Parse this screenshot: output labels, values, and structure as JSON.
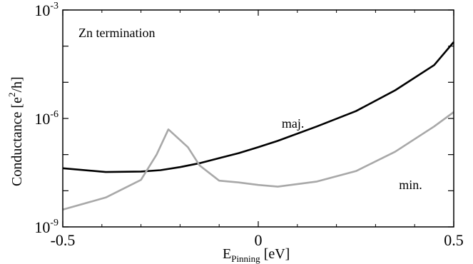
{
  "chart_data": {
    "type": "line",
    "annotation": "Zn termination",
    "xlabel": {
      "main": "E",
      "sub": "Pinning",
      "unit": " [eV]"
    },
    "ylabel": {
      "main": "Conductance [e",
      "sup": "2",
      "tail": "/h]"
    },
    "xlim": [
      -0.5,
      0.5
    ],
    "ylim_log10": [
      -9,
      -3
    ],
    "yscale": "log",
    "grid": false,
    "x_ticks": [
      {
        "value": -0.5,
        "label": "-0.5"
      },
      {
        "value": 0,
        "label": "0"
      },
      {
        "value": 0.5,
        "label": "0.5"
      }
    ],
    "y_ticks": [
      {
        "exp": -3,
        "base": "10",
        "sup": "-3"
      },
      {
        "exp": -6,
        "base": "10",
        "sup": "-6"
      },
      {
        "exp": -9,
        "base": "10",
        "sup": "-9"
      }
    ],
    "series": [
      {
        "name": "maj.",
        "color": "#000000",
        "x": [
          -0.5,
          -0.39,
          -0.3,
          -0.25,
          -0.2,
          -0.15,
          -0.1,
          -0.05,
          0.0,
          0.05,
          0.15,
          0.25,
          0.35,
          0.45,
          0.5
        ],
        "y": [
          4.2e-08,
          3.3e-08,
          3.4e-08,
          3.7e-08,
          4.5e-08,
          5.8e-08,
          8e-08,
          1.1e-07,
          1.6e-07,
          2.4e-07,
          6e-07,
          1.6e-06,
          6e-06,
          3e-05,
          0.00013
        ]
      },
      {
        "name": "min.",
        "color": "#a8a8a8",
        "x": [
          -0.5,
          -0.39,
          -0.3,
          -0.26,
          -0.23,
          -0.18,
          -0.15,
          -0.1,
          -0.05,
          0.0,
          0.05,
          0.15,
          0.25,
          0.35,
          0.45,
          0.5
        ],
        "y": [
          3e-09,
          6.5e-09,
          2e-08,
          1e-07,
          5e-07,
          1.6e-07,
          5e-08,
          1.9e-08,
          1.7e-08,
          1.45e-08,
          1.3e-08,
          1.8e-08,
          3.5e-08,
          1.2e-07,
          6e-07,
          1.5e-06
        ]
      }
    ],
    "series_labels": [
      {
        "series": "maj.",
        "x": 0.06,
        "y": 5.5e-07
      },
      {
        "series": "min.",
        "x": 0.36,
        "y": 1.1e-08
      }
    ]
  }
}
